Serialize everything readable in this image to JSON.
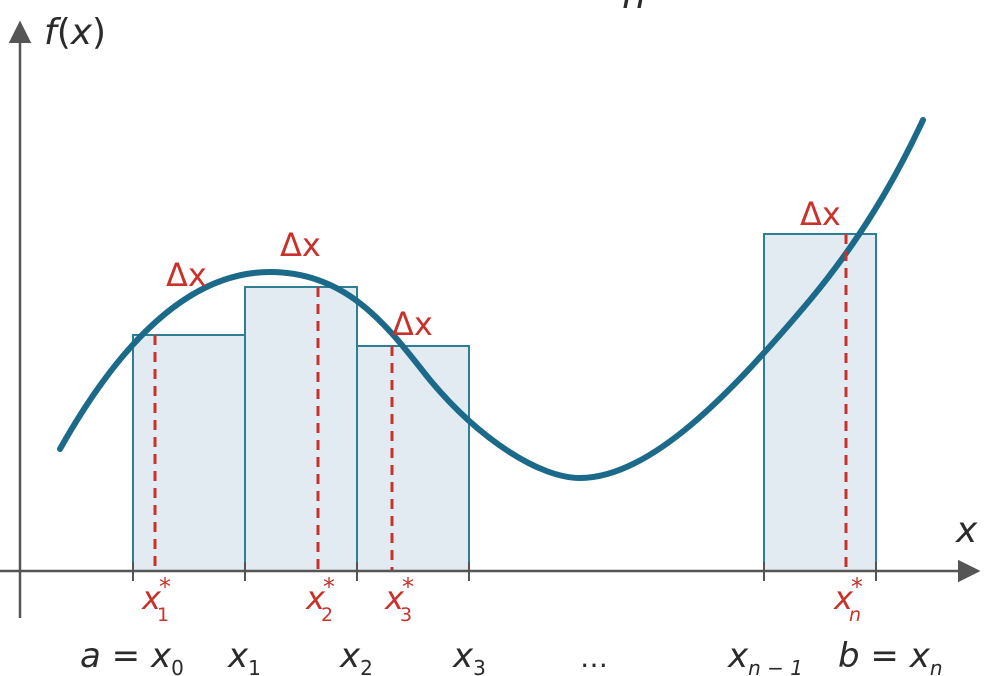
{
  "colors": {
    "curve": "#1c6a8a",
    "bar_fill": "#e3ebf2",
    "bar_stroke": "#2f7e93",
    "axis": "#555555",
    "accent_red": "#c8322b",
    "text_dark": "#2b2b2b"
  },
  "top_partial_glyph": "n",
  "y_axis": {
    "f": "f",
    "lp": "(",
    "var": "x",
    "rp": ")"
  },
  "x_axis_label": "x",
  "rectangles": [
    {
      "delta_label": "Δx",
      "star": {
        "base": "x",
        "sup": "*",
        "sub": "1"
      }
    },
    {
      "delta_label": "Δx",
      "star": {
        "base": "x",
        "sup": "*",
        "sub": "2"
      }
    },
    {
      "delta_label": "Δx",
      "star": {
        "base": "x",
        "sup": "*",
        "sub": "3"
      }
    },
    {
      "delta_label": "Δx",
      "star": {
        "base": "x",
        "sup": "*",
        "sub": "n"
      }
    }
  ],
  "partition_labels": [
    {
      "pre": "a = ",
      "base": "x",
      "sub": "0"
    },
    {
      "pre": "",
      "base": "x",
      "sub": "1"
    },
    {
      "pre": "",
      "base": "x",
      "sub": "2"
    },
    {
      "pre": "",
      "base": "x",
      "sub": "3"
    },
    {
      "pre": "",
      "base": "…",
      "sub": ""
    },
    {
      "pre": "",
      "base": "x",
      "sub": "n − 1"
    },
    {
      "pre": "b = ",
      "base": "x",
      "sub": "n"
    }
  ]
}
